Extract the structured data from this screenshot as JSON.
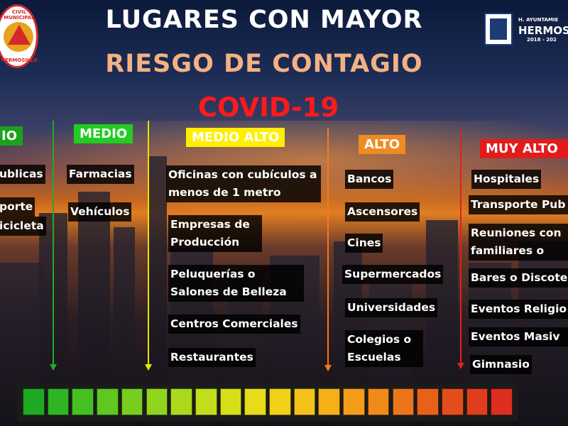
{
  "header": {
    "title_line1": "LUGARES CON MAYOR",
    "title_line2": "RIESGO DE CONTAGIO",
    "title_line3": "COVID-19"
  },
  "logos": {
    "left_text_top": "CIVIL MUNICIPAL",
    "left_text_bottom": "HERMOSILLO",
    "right_line1": "H. AYUNTAMIE",
    "right_line2": "HERMOS",
    "right_line3": "2018 - 202"
  },
  "columns": [
    {
      "label": "IO",
      "color": "#1aa31a",
      "items": [
        "ublicas",
        "porte",
        "icicleta"
      ]
    },
    {
      "label": "MEDIO",
      "color": "#22cc22",
      "items": [
        "Farmacias",
        "Vehículos"
      ]
    },
    {
      "label": "MEDIO ALTO",
      "color": "#ffee00",
      "items": [
        "Oficinas con cubículos a menos de 1 metro",
        "Empresas de Producción",
        "Peluquerías o Salones de Belleza",
        "Centros Comerciales",
        "Restaurantes"
      ]
    },
    {
      "label": "ALTO",
      "color": "#f08a24",
      "items": [
        "Bancos",
        "Ascensores",
        "Cines",
        "Supermercados",
        "Universidades",
        "Colegios o Escuelas"
      ]
    },
    {
      "label": "MUY ALTO",
      "color": "#e31b1b",
      "items": [
        "Hospitales",
        "Transporte Pub",
        "Reuniones con familiares o am",
        "Bares o Discote",
        "Eventos Religio",
        "Eventos Masiv",
        "Gimnasio"
      ]
    }
  ],
  "arrows": {
    "green": "#22aa22",
    "yellow": "#e5e500",
    "orange": "#f07a20",
    "red": "#e02020"
  },
  "risk_scale": {
    "colors": [
      "#1fa821",
      "#2db524",
      "#45bf22",
      "#5fc720",
      "#78ce1f",
      "#91d41d",
      "#aad91c",
      "#c1dd1b",
      "#d6df1a",
      "#e6dc19",
      "#f0d118",
      "#f4c218",
      "#f5b018",
      "#f39d18",
      "#f08a19",
      "#ec751a",
      "#e8611b",
      "#e44e1c",
      "#e03d1d",
      "#dd2f1f"
    ]
  }
}
